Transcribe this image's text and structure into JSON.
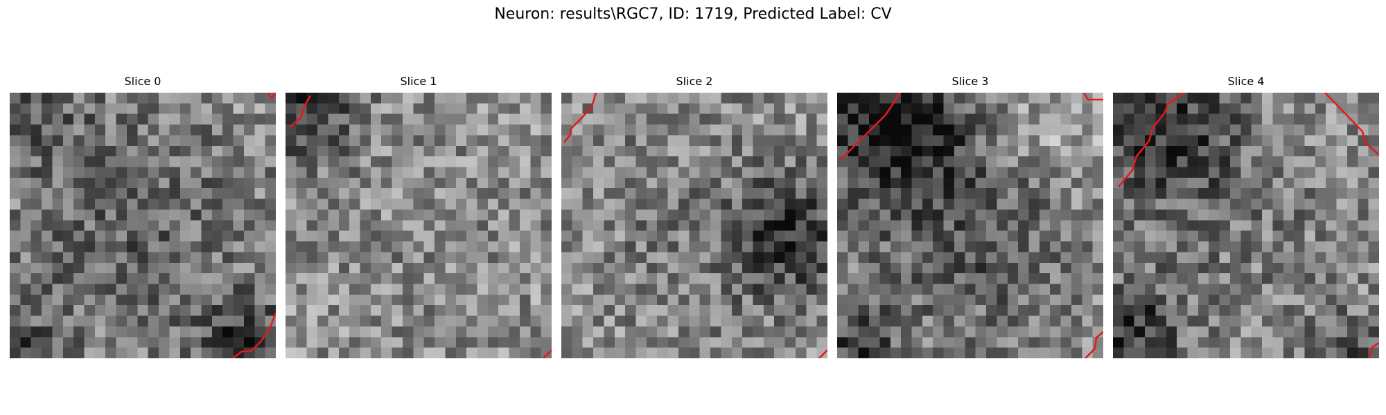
{
  "figure": {
    "suptitle": "Neuron: results\\RGC7, ID: 1719, Predicted Label: CV"
  },
  "panels": [
    {
      "title": "Slice 0"
    },
    {
      "title": "Slice 1"
    },
    {
      "title": "Slice 2"
    },
    {
      "title": "Slice 3"
    },
    {
      "title": "Slice 4"
    }
  ],
  "colors": {
    "contour": "#e41a1c",
    "colormap": "gray"
  }
}
